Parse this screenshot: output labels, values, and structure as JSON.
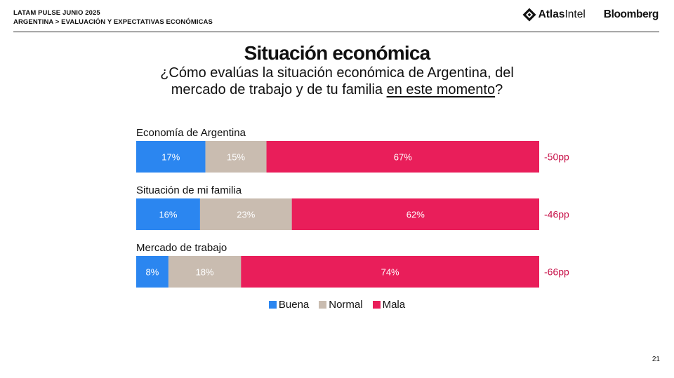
{
  "header": {
    "line1": "LATAM PULSE JUNIO 2025",
    "line2": "ARGENTINA > EVALUACIÓN Y EXPECTATIVAS ECONÓMICAS"
  },
  "logos": {
    "atlas_bold": "Atlas",
    "atlas_light": "Intel",
    "bloomberg": "Bloomberg"
  },
  "title": "Situación económica",
  "subtitle": {
    "before": "¿Cómo evalúas la situación económica de Argentina, del mercado de trabajo y de tu familia ",
    "underlined": "en este momento",
    "after": "?"
  },
  "colors": {
    "Buena": "#2b86f0",
    "Normal": "#c9bcb0",
    "Mala": "#e91e5a",
    "net": "#c8134a"
  },
  "chart_data": {
    "type": "bar",
    "orientation": "horizontal",
    "stacked": true,
    "categories": [
      "Economía de Argentina",
      "Situación de mi familia",
      "Mercado de trabajo"
    ],
    "series": [
      {
        "name": "Buena",
        "values": [
          17,
          16,
          8
        ]
      },
      {
        "name": "Normal",
        "values": [
          15,
          23,
          18
        ]
      },
      {
        "name": "Mala",
        "values": [
          67,
          62,
          74
        ]
      }
    ],
    "data_labels": {
      "Buena": [
        "17%",
        "16%",
        "8%"
      ],
      "Normal": [
        "15%",
        "23%",
        "18%"
      ],
      "Mala": [
        "67%",
        "62%",
        "74%"
      ]
    },
    "net": [
      "-50pp",
      "-46pp",
      "-66pp"
    ],
    "legend": [
      "Buena",
      "Normal",
      "Mala"
    ],
    "legend_position": "bottom",
    "grid": false
  },
  "page_number": "21"
}
